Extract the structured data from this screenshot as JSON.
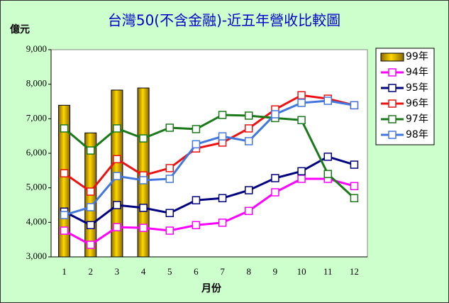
{
  "chart_data": {
    "type": "combo",
    "title": "台灣50(不含金融)-近五年營收比較圖",
    "y_label": "億元",
    "x_label": "月份",
    "categories": [
      "1",
      "2",
      "3",
      "4",
      "5",
      "6",
      "7",
      "8",
      "9",
      "10",
      "11",
      "12"
    ],
    "ylim": [
      3000,
      9000
    ],
    "yticks": [
      {
        "value": 3000,
        "label": "3,000"
      },
      {
        "value": 4000,
        "label": "4,000"
      },
      {
        "value": 5000,
        "label": "5,000"
      },
      {
        "value": 6000,
        "label": "6,000"
      },
      {
        "value": 7000,
        "label": "7,000"
      },
      {
        "value": 8000,
        "label": "8,000"
      },
      {
        "value": 9000,
        "label": "9,000"
      }
    ],
    "series": [
      {
        "name": "99年",
        "type": "bar",
        "color": "#d4a800",
        "values": [
          7390,
          6590,
          7830,
          7890,
          null,
          null,
          null,
          null,
          null,
          null,
          null,
          null
        ]
      },
      {
        "name": "94年",
        "type": "line",
        "color": "#ff00ff",
        "values": [
          3760,
          3350,
          3860,
          3840,
          3760,
          3920,
          3990,
          4330,
          4870,
          5260,
          5260,
          5050
        ]
      },
      {
        "name": "95年",
        "type": "line",
        "color": "#000080",
        "values": [
          4310,
          3920,
          4500,
          4420,
          4270,
          4640,
          4700,
          4930,
          5280,
          5480,
          5900,
          5670
        ]
      },
      {
        "name": "96年",
        "type": "line",
        "color": "#ee1111",
        "values": [
          5420,
          4890,
          5830,
          5360,
          5570,
          6140,
          6310,
          6720,
          7270,
          7680,
          7580,
          7390
        ]
      },
      {
        "name": "97年",
        "type": "line",
        "color": "#1a7a1a",
        "values": [
          6720,
          6080,
          6720,
          6430,
          6740,
          6700,
          7110,
          7090,
          7020,
          6960,
          5400,
          4700
        ]
      },
      {
        "name": "98年",
        "type": "line",
        "color": "#4477dd",
        "values": [
          4210,
          4440,
          5340,
          5220,
          5260,
          6260,
          6490,
          6350,
          7130,
          7460,
          7520,
          7390
        ]
      }
    ]
  }
}
